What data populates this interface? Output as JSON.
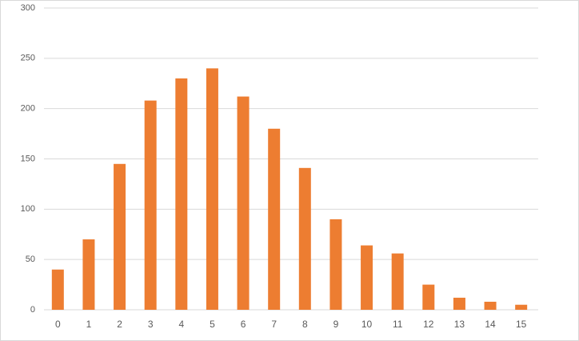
{
  "chart_data": {
    "type": "bar",
    "categories": [
      "0",
      "1",
      "2",
      "3",
      "4",
      "5",
      "6",
      "7",
      "8",
      "9",
      "10",
      "11",
      "12",
      "13",
      "14",
      "15"
    ],
    "values": [
      40,
      70,
      145,
      208,
      230,
      240,
      212,
      180,
      141,
      90,
      64,
      56,
      25,
      12,
      8,
      5
    ],
    "color": "#ed7d31",
    "ylim": [
      0,
      300
    ],
    "yticks": [
      0,
      50,
      100,
      150,
      200,
      250,
      300
    ],
    "grid": true
  }
}
